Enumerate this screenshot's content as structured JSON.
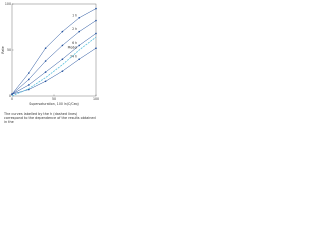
{
  "chart_data": {
    "type": "line",
    "x_label": "Supersaturation, 100 ln(C/Ceq)",
    "y_label": "Rate",
    "caption": "The curves labelled by the h (dashed lines) correspond to the dependence of the results obtained in the",
    "x": [
      0,
      20,
      40,
      60,
      80,
      100
    ],
    "series": [
      {
        "name": "1 h",
        "color": "#1f4e9c",
        "values": [
          2,
          25,
          52,
          70,
          85,
          95
        ]
      },
      {
        "name": "2 h",
        "color": "#1f4e9c",
        "values": [
          2,
          18,
          38,
          55,
          70,
          82
        ]
      },
      {
        "name": "6 h",
        "color": "#1f4e9c",
        "values": [
          2,
          12,
          26,
          40,
          55,
          68
        ]
      },
      {
        "name": "24 h",
        "color": "#1f4e9c",
        "values": [
          2,
          7,
          16,
          27,
          40,
          52
        ]
      },
      {
        "name": "Model",
        "color": "#5bc0de",
        "values": [
          0,
          8,
          20,
          34,
          50,
          64
        ],
        "dashed": true
      }
    ],
    "xlim": [
      0,
      100
    ],
    "ylim": [
      0,
      100
    ],
    "xticks": [
      0,
      50,
      100
    ],
    "yticks": [
      0,
      50,
      100
    ]
  }
}
